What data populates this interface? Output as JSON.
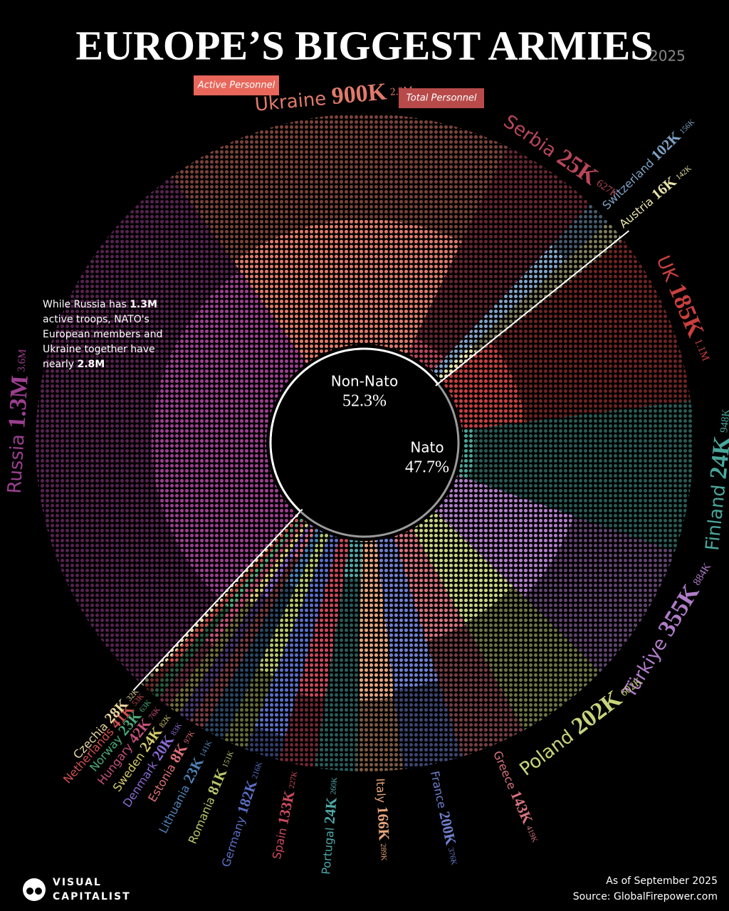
{
  "chart_data": {
    "type": "pie",
    "title": "EUROPE’S BIGGEST ARMIES",
    "subtitle": "2025",
    "categories": [
      "Russia",
      "Ukraine",
      "Serbia",
      "Switzerland",
      "Austria",
      "UK",
      "Finland",
      "Türkiye",
      "Poland",
      "Greece",
      "France",
      "Italy",
      "Portugal",
      "Spain",
      "Germany",
      "Romania",
      "Lithuania",
      "Estonia",
      "Denmark",
      "Sweden",
      "Hungary",
      "Norway",
      "Netherlands",
      "Czechia"
    ],
    "category_colors": [
      "#9b3f8f",
      "#e07a6a",
      "#b9465a",
      "#7fa3c6",
      "#e8e3a8",
      "#c8403f",
      "#4aa59a",
      "#b07cc8",
      "#c7d47a",
      "#d8737e",
      "#6f7fd0",
      "#e7a57a",
      "#4fa8a8",
      "#cc4a5c",
      "#5b6fc7",
      "#b9c66a",
      "#4d82b8",
      "#e0707a",
      "#8a6ad0",
      "#d6cc6e",
      "#c4517a",
      "#4caa7a",
      "#d05050",
      "#e8d8a0"
    ],
    "series": [
      {
        "name": "Active Personnel",
        "color": "#e8665a",
        "values": [
          1300000,
          900000,
          25000,
          102000,
          16000,
          185000,
          24000,
          355000,
          202000,
          143000,
          200000,
          166000,
          24000,
          133000,
          182000,
          81000,
          23000,
          8000,
          20000,
          24000,
          42000,
          23000,
          41000,
          28000
        ],
        "value_labels": [
          "1.3M",
          "900K",
          "25K",
          "102K",
          "16K",
          "185K",
          "24K",
          "355K",
          "202K",
          "143K",
          "200K",
          "166K",
          "24K",
          "133K",
          "182K",
          "81K",
          "23K",
          "8K",
          "20K",
          "24K",
          "42K",
          "23K",
          "41K",
          "28K"
        ]
      },
      {
        "name": "Total Personnel",
        "color": "#b84a4a",
        "values": [
          3600000,
          2200000,
          627000,
          156000,
          142000,
          1100000,
          948000,
          884000,
          602000,
          419000,
          376000,
          289000,
          260000,
          227000,
          216000,
          151000,
          141000,
          97000,
          83000,
          82000,
          76000,
          63000,
          53000,
          32000
        ],
        "value_labels": [
          "3.6M",
          "2.2M",
          "627K",
          "156K",
          "142K",
          "1.1M",
          "948K",
          "884K",
          "602K",
          "419K",
          "376K",
          "289K",
          "260K",
          "227K",
          "216K",
          "151K",
          "141K",
          "97K",
          "83K",
          "82K",
          "76K",
          "63K",
          "53K",
          "32K"
        ]
      }
    ],
    "groups": {
      "names": [
        "Non-Nato",
        "Nato"
      ],
      "values": [
        52.3,
        47.7
      ],
      "value_labels": [
        "52.3%",
        "47.7%"
      ]
    },
    "annotation": [
      "While Russia has ",
      "1.3M",
      " active troops, NATO's European members and Ukraine together have nearly ",
      "2.8M"
    ],
    "note": "As of September 2025",
    "source": "Source: GlobalFirepower.com",
    "brand": [
      "VISUAL",
      "CAPITALIST"
    ]
  }
}
